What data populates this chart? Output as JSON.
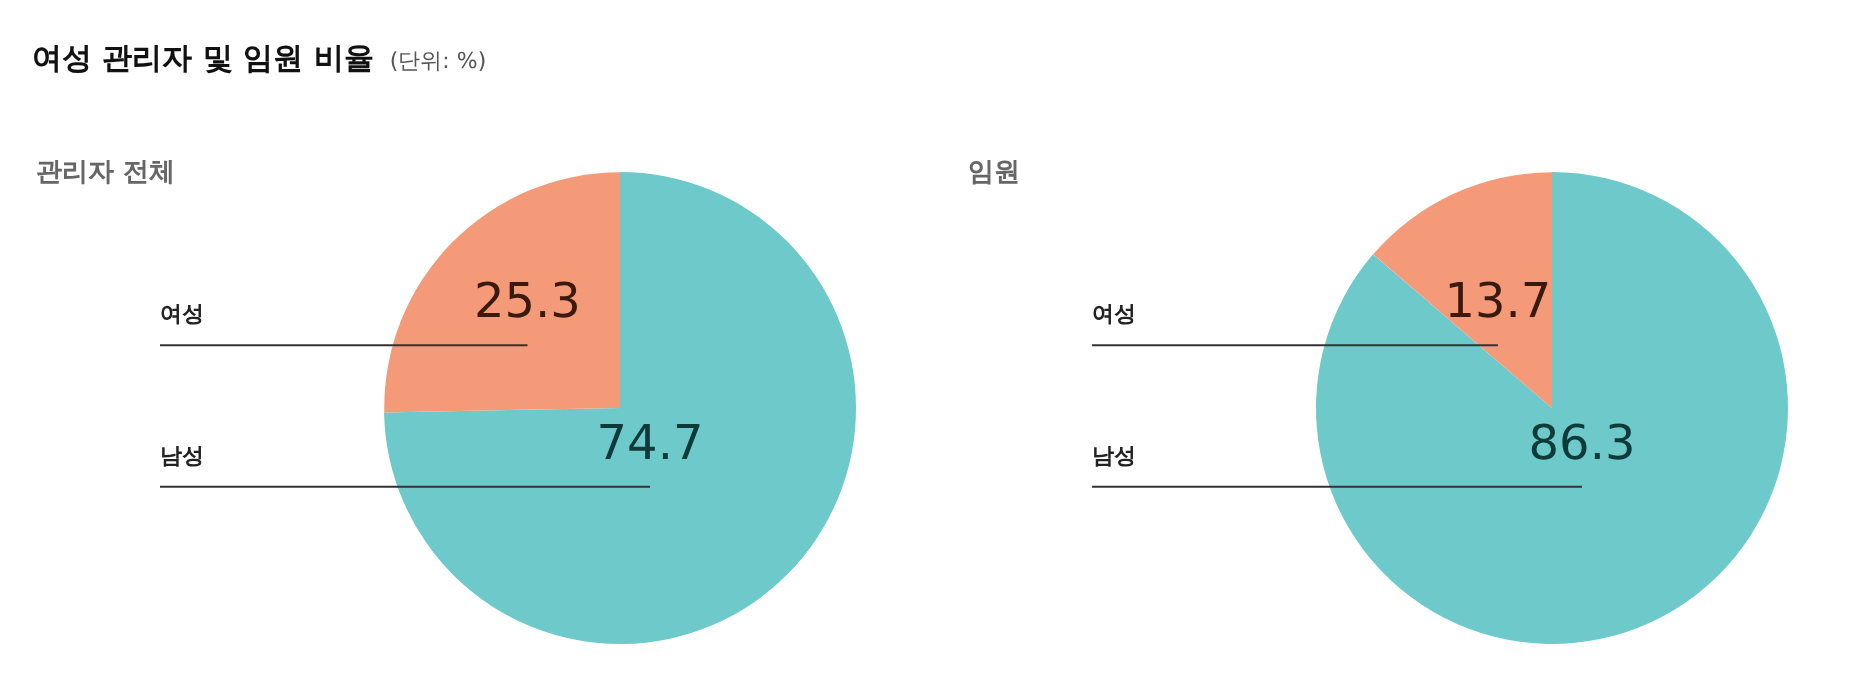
{
  "chart_data": [
    {
      "type": "pie",
      "title": "여성 관리자 및 임원 비율",
      "subtitle": "(단위: %)",
      "annotations": [
        "관리자 전체"
      ],
      "categories": [
        "남성",
        "여성"
      ],
      "values": [
        74.7,
        25.3
      ],
      "colors": [
        "#6ecaca",
        "#f59a78"
      ],
      "data_labels": true
    },
    {
      "type": "pie",
      "title": "임원",
      "categories": [
        "남성",
        "여성"
      ],
      "values": [
        86.3,
        13.7
      ],
      "colors": [
        "#6ecaca",
        "#f59a78"
      ],
      "data_labels": true
    }
  ]
}
